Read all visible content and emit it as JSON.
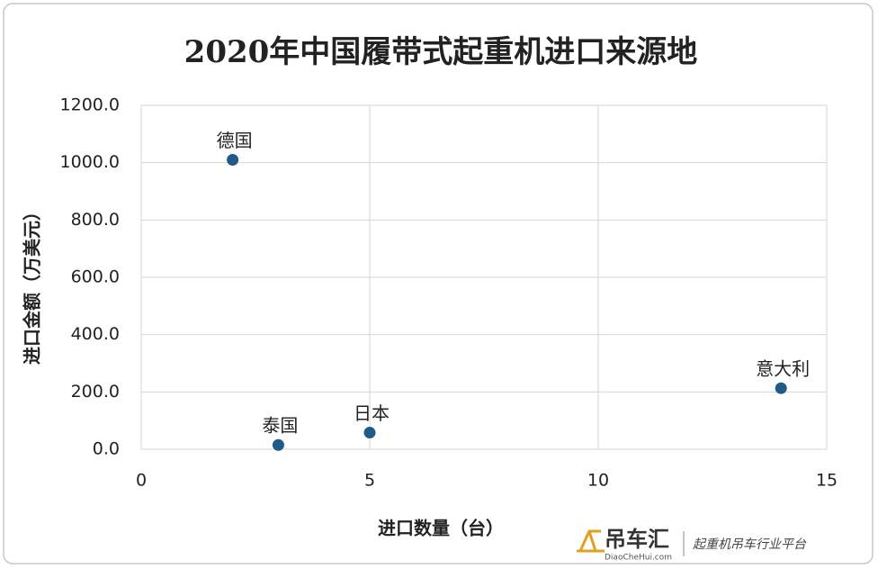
{
  "chart_data": {
    "type": "scatter",
    "title": "2020年中国履带式起重机进口来源地",
    "x_label": "进口数量（台）",
    "y_label": "进口金额（万美元）",
    "labels": [
      "德国",
      "泰国",
      "日本",
      "意大利"
    ],
    "x": [
      2,
      3,
      5,
      14
    ],
    "values": [
      1010,
      15,
      58,
      213
    ],
    "color": "#1f5a8a",
    "xlim": [
      0,
      15
    ],
    "xticks": [
      0,
      5,
      10,
      15
    ],
    "ylim": [
      0,
      1200
    ],
    "yticks": [
      {
        "value": 0,
        "label": "0.0"
      },
      {
        "value": 200,
        "label": "200.0"
      },
      {
        "value": 400,
        "label": "400.0"
      },
      {
        "value": 600,
        "label": "600.0"
      },
      {
        "value": 800,
        "label": "800.0"
      },
      {
        "value": 1000,
        "label": "1000.0"
      },
      {
        "value": 1200,
        "label": "1200.0"
      }
    ],
    "grid": true
  },
  "watermark": {
    "brand": "吊车汇",
    "site": "DiaoCheHui.com",
    "slogan": "起重机吊车行业平台"
  }
}
